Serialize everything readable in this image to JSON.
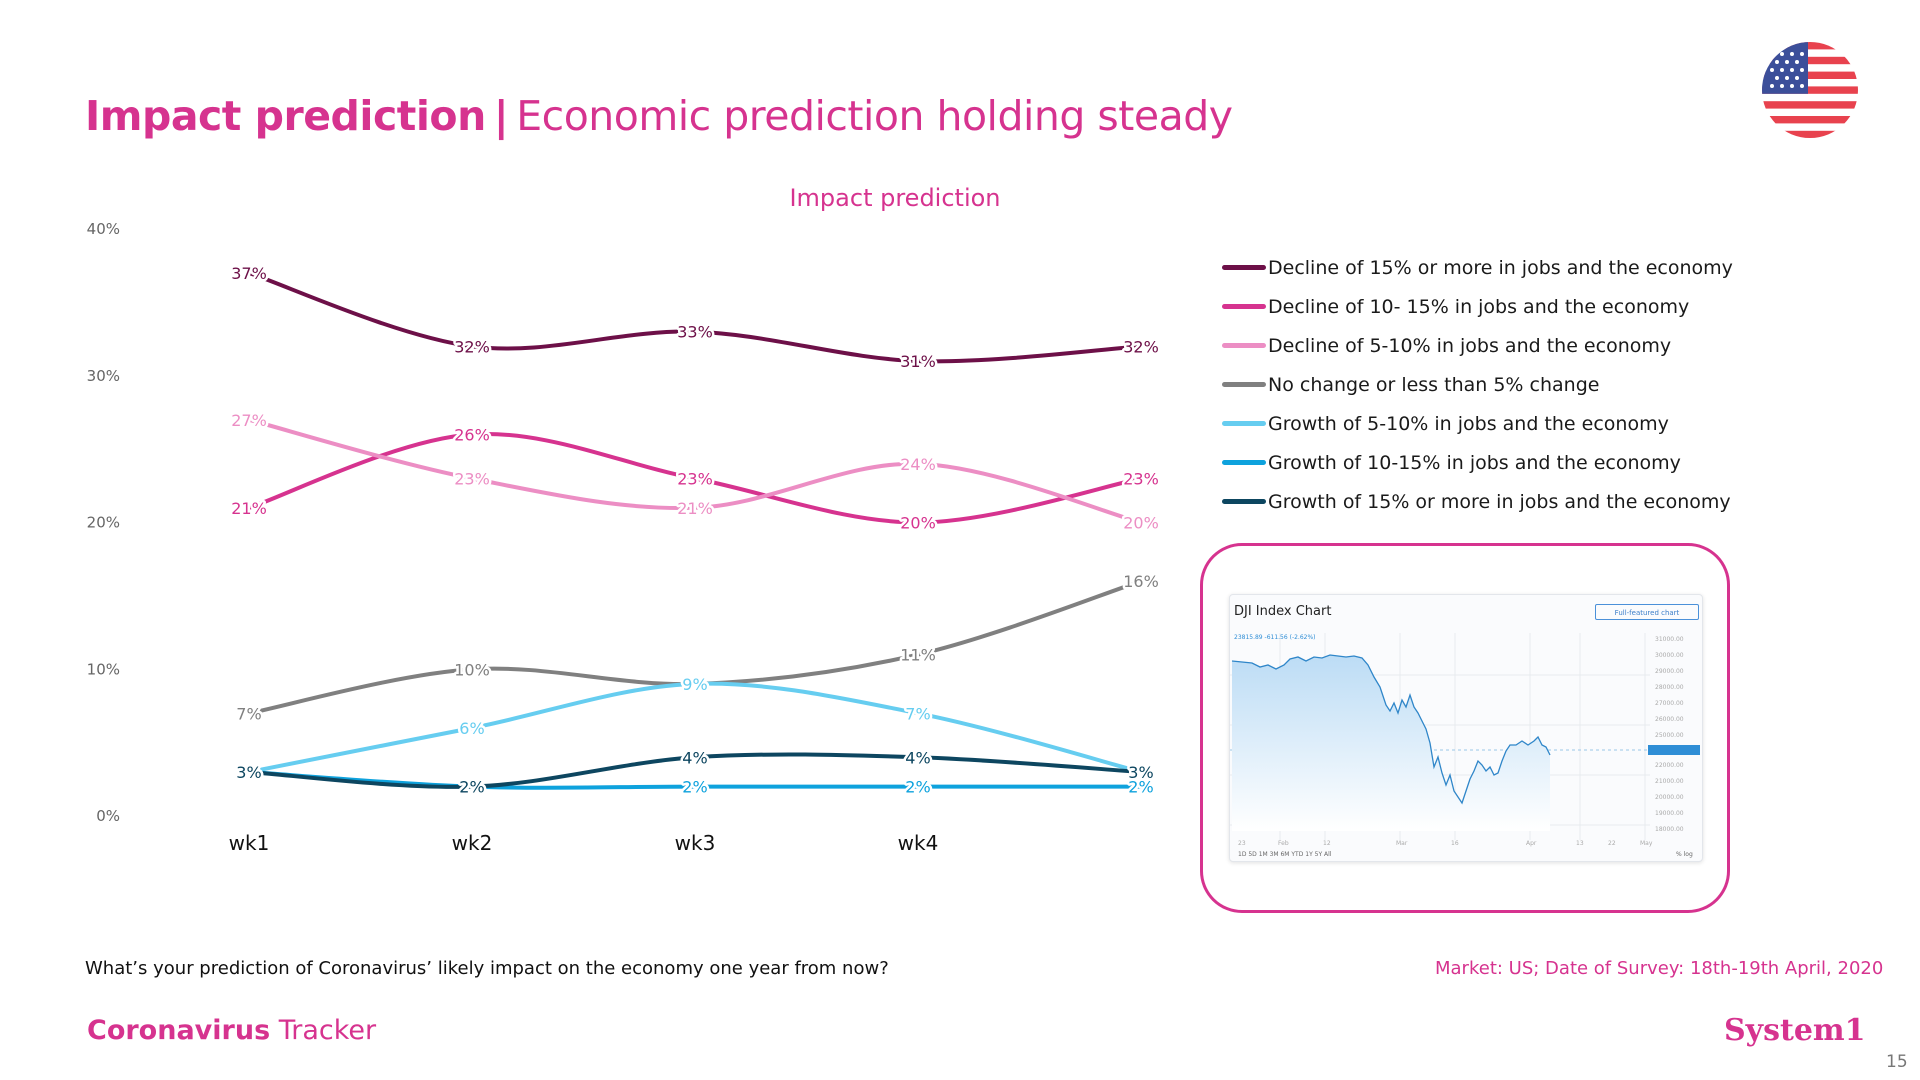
{
  "header": {
    "title_bold": "Impact prediction",
    "separator": "|",
    "title_rest": "Economic prediction holding steady"
  },
  "footer": {
    "question": "What’s your prediction of Coronavirus’ likely impact on the economy one year from now?",
    "market": "Market: US; Date of Survey: 18th-19th April, 2020",
    "brand_bold": "Coronavirus",
    "brand_rest": " Tracker",
    "logo": "System1",
    "page_number": "15"
  },
  "dji": {
    "title": "DJI Index Chart",
    "button_label": "Full-featured chart"
  },
  "chart_data": {
    "type": "line",
    "title": "Impact prediction",
    "categories": [
      "wk1",
      "wk2",
      "wk3",
      "wk4",
      ""
    ],
    "ylim": [
      0,
      40
    ],
    "yticks": [
      0,
      10,
      20,
      30,
      40
    ],
    "ytick_labels": [
      "0%",
      "10%",
      "20%",
      "30%",
      "40%"
    ],
    "legend_position": "right",
    "series": [
      {
        "name": "Decline of 15% or more in jobs and the economy",
        "color": "#6d1048",
        "values": [
          37,
          32,
          33,
          31,
          32
        ]
      },
      {
        "name": "Decline of 10- 15% in jobs and the economy",
        "color": "#d6338f",
        "values": [
          21,
          26,
          23,
          20,
          23
        ]
      },
      {
        "name": "Decline of 5-10% in jobs and the economy",
        "color": "#ec8ec4",
        "values": [
          27,
          23,
          21,
          24,
          20
        ]
      },
      {
        "name": "No change or less than 5% change",
        "color": "#808080",
        "values": [
          7,
          10,
          9,
          11,
          16
        ]
      },
      {
        "name": "Growth of 5-10% in jobs and the economy",
        "color": "#66cdf0",
        "values": [
          3,
          6,
          9,
          7,
          3
        ]
      },
      {
        "name": "Growth of 10-15% in jobs and the economy",
        "color": "#0ea2dd",
        "values": [
          3,
          2,
          2,
          2,
          2
        ]
      },
      {
        "name": "Growth of 15% or more in jobs and the economy",
        "color": "#0d4660",
        "values": [
          3,
          2,
          4,
          4,
          3
        ]
      }
    ]
  }
}
